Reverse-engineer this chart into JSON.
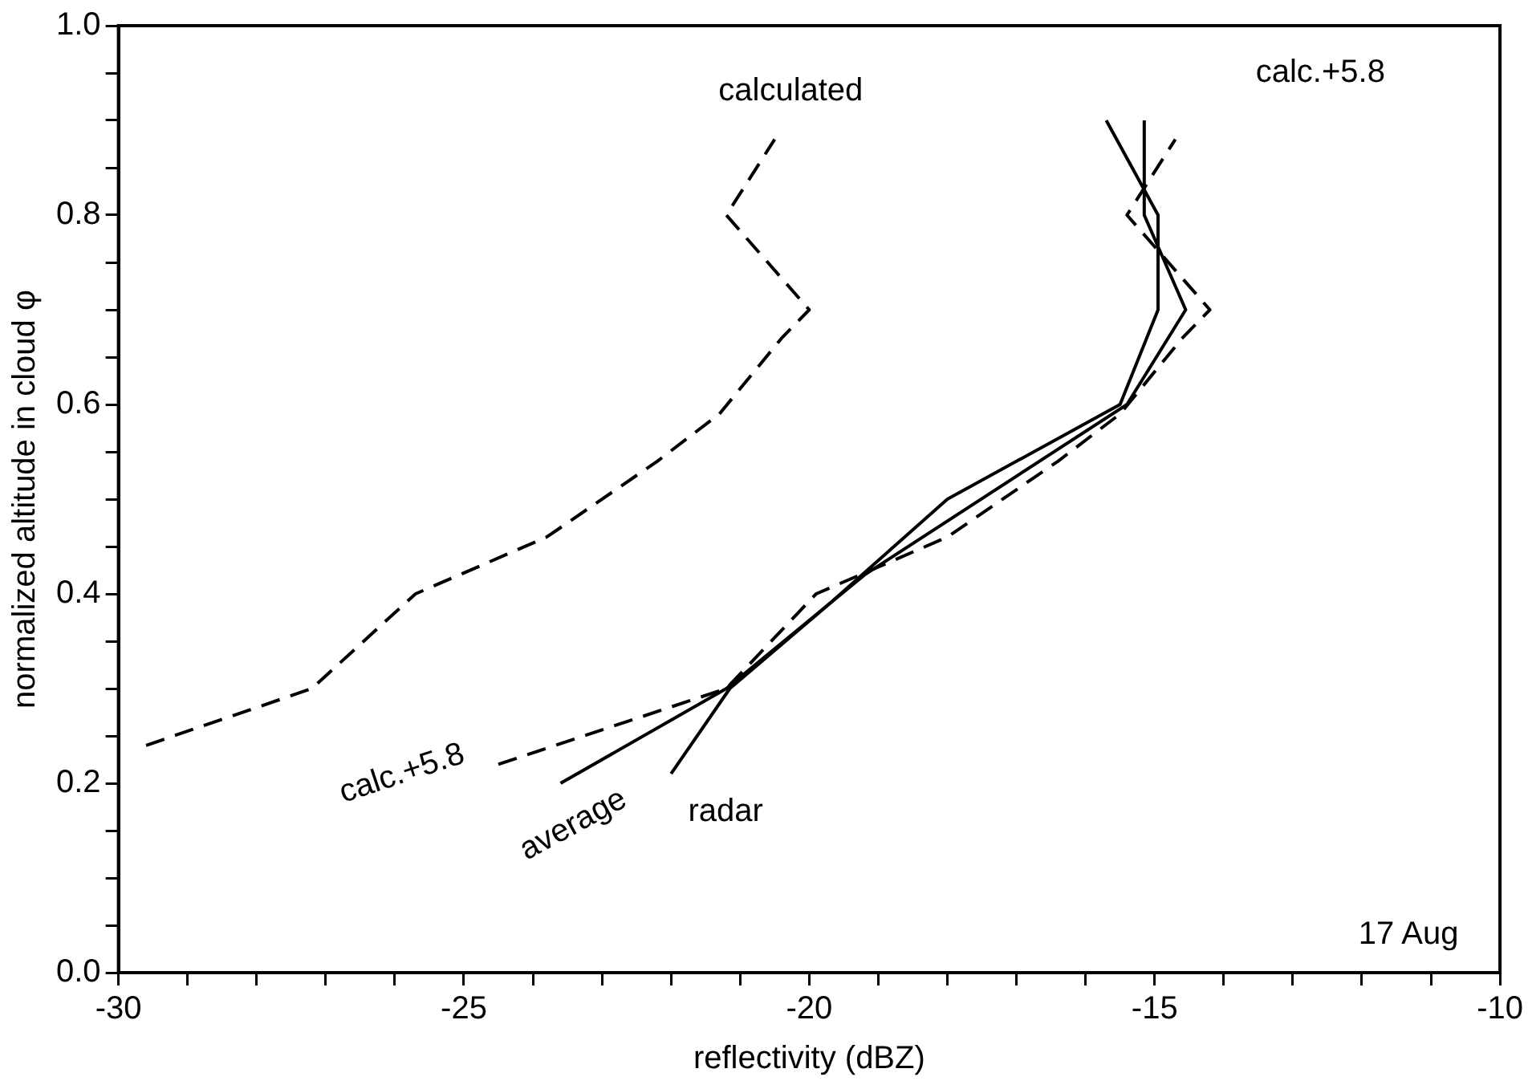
{
  "chart_data": {
    "type": "line",
    "xlabel": "reflectivity (dBZ)",
    "ylabel": "normalized altitude in cloud φ",
    "xlim": [
      -30,
      -10
    ],
    "xticks": [
      -30,
      {
        "value": -29,
        "label": null
      },
      {
        "value": -28,
        "label": null
      },
      {
        "value": -27,
        "label": null
      },
      {
        "value": -26,
        "label": null
      },
      -25,
      {
        "value": -24,
        "label": null
      },
      {
        "value": -23,
        "label": null
      },
      {
        "value": -22,
        "label": null
      },
      {
        "value": -21,
        "label": null
      },
      -20,
      {
        "value": -19,
        "label": null
      },
      {
        "value": -18,
        "label": null
      },
      {
        "value": -17,
        "label": null
      },
      {
        "value": -16,
        "label": null
      },
      -15,
      {
        "value": -14,
        "label": null
      },
      {
        "value": -13,
        "label": null
      },
      {
        "value": -12,
        "label": null
      },
      {
        "value": -11,
        "label": null
      },
      -10
    ],
    "ylim": [
      0,
      1
    ],
    "yticks": [
      {
        "value": 0,
        "label": "0.0"
      },
      {
        "value": 0.05,
        "label": null
      },
      {
        "value": 0.1,
        "label": null
      },
      {
        "value": 0.15,
        "label": null
      },
      0.2,
      {
        "value": 0.25,
        "label": null
      },
      {
        "value": 0.3,
        "label": null
      },
      {
        "value": 0.35,
        "label": null
      },
      0.4,
      {
        "value": 0.45,
        "label": null
      },
      {
        "value": 0.5,
        "label": null
      },
      {
        "value": 0.55,
        "label": null
      },
      0.6,
      {
        "value": 0.65,
        "label": null
      },
      {
        "value": 0.7,
        "label": null
      },
      {
        "value": 0.75,
        "label": null
      },
      0.8,
      {
        "value": 0.85,
        "label": null
      },
      {
        "value": 0.9,
        "label": null
      },
      {
        "value": 0.95,
        "label": null
      },
      {
        "value": 1,
        "label": "1.0"
      }
    ],
    "grid": false,
    "legend": false,
    "marker": "none",
    "series": [
      {
        "name": "calculated",
        "color": "#000000",
        "line_style": "dashed",
        "x": [
          -29.6,
          -27.2,
          -25.7,
          -23.8,
          -22.2,
          -21.3,
          -20.4,
          -20,
          -21.2,
          -20.5
        ],
        "values": [
          0.24,
          0.3,
          0.4,
          0.46,
          0.54,
          0.59,
          0.67,
          0.7,
          0.8,
          0.88
        ]
      },
      {
        "name": "calc.+5.8",
        "color": "#000000",
        "line_style": "dashed",
        "x": [
          -24.5,
          -21.2,
          -19.9,
          -18,
          -16.4,
          -15.5,
          -14.6,
          -14.2,
          -15.4,
          -14.7
        ],
        "values": [
          0.22,
          0.3,
          0.4,
          0.46,
          0.54,
          0.59,
          0.67,
          0.7,
          0.8,
          0.88
        ]
      },
      {
        "name": "average",
        "color": "#000000",
        "line_style": "solid",
        "x": [
          -23.6,
          -21.2,
          -19.2,
          -15.4,
          -14.55,
          -15.15,
          -15.15
        ],
        "values": [
          0.2,
          0.3,
          0.42,
          0.6,
          0.7,
          0.8,
          0.9
        ]
      },
      {
        "name": "radar",
        "color": "#000000",
        "line_style": "solid",
        "x": [
          -22,
          -21.15,
          -19.7,
          -18,
          -15.5,
          -14.95,
          -14.95,
          -15.7
        ],
        "values": [
          0.21,
          0.3,
          0.39,
          0.5,
          0.6,
          0.7,
          0.8,
          0.9
        ]
      }
    ],
    "annotations": [
      "calc.+5.8",
      "17 Aug"
    ]
  }
}
